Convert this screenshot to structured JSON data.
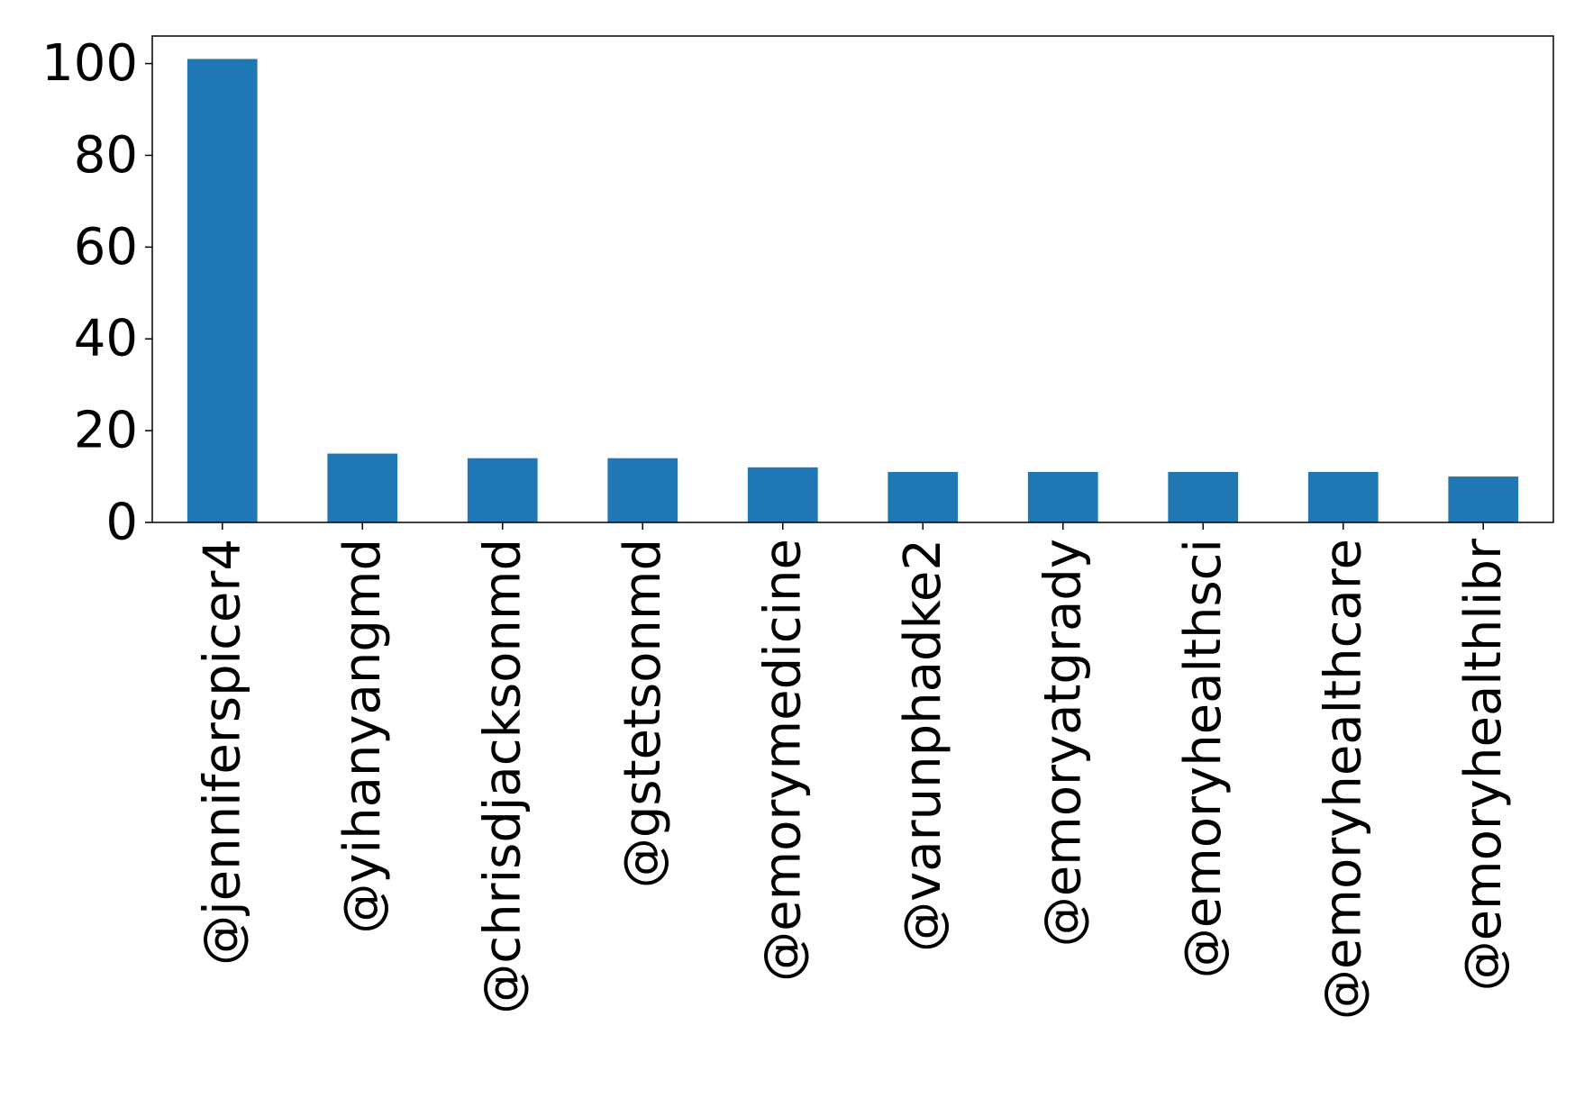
{
  "chart_data": {
    "type": "bar",
    "title": "",
    "xlabel": "",
    "ylabel": "",
    "categories": [
      "@jenniferspicer4",
      "@yihanyangmd",
      "@chrisdjacksonmd",
      "@gstetsonmd",
      "@emorymedicine",
      "@varunphadke2",
      "@emoryatgrady",
      "@emoryhealthsci",
      "@emoryhealthcare",
      "@emoryhealthlibr"
    ],
    "values": [
      101,
      15,
      14,
      14,
      12,
      11,
      11,
      11,
      11,
      10
    ],
    "ylim": [
      0,
      106
    ],
    "yticks": [
      0,
      20,
      40,
      60,
      80,
      100
    ],
    "bar_color": "#1f77b4",
    "grid": false,
    "legend": "none"
  }
}
